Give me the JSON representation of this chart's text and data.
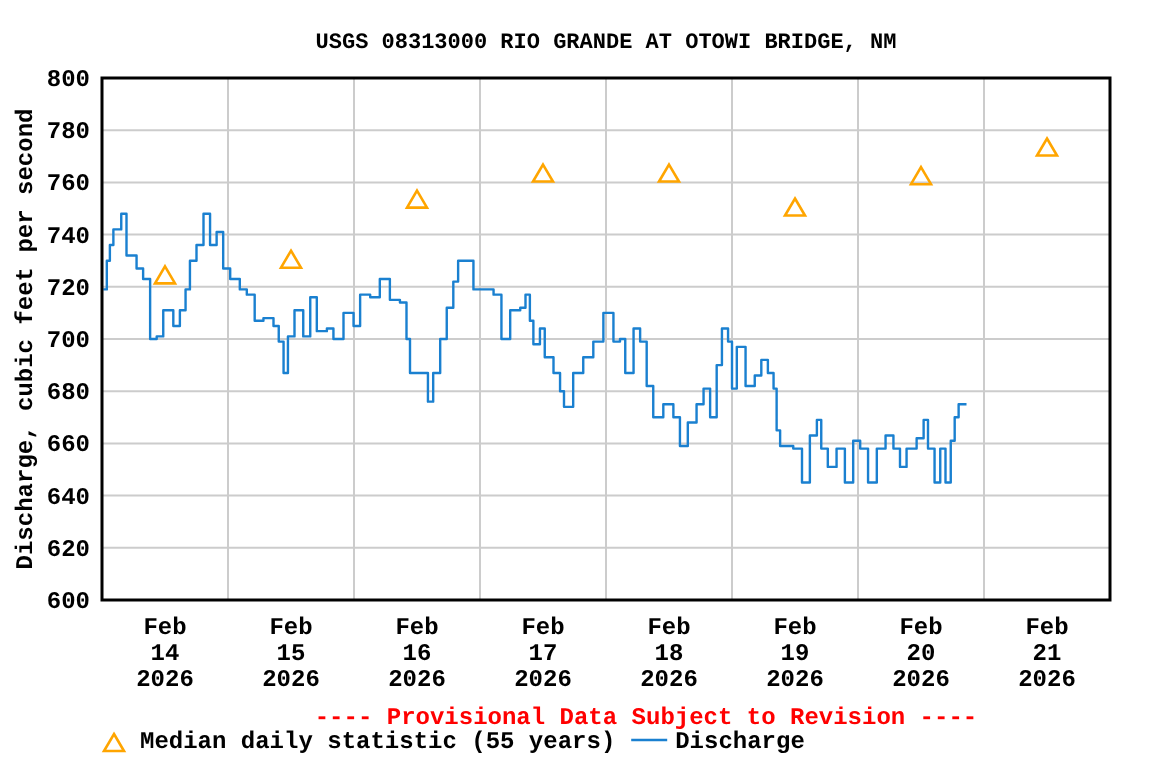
{
  "chart_data": {
    "type": "step",
    "title": "USGS 08313000 RIO GRANDE AT OTOWI BRIDGE, NM",
    "ylabel": "Discharge, cubic feet per second",
    "annotations": [
      "---- Provisional Data Subject to Revision ----"
    ],
    "xlim": [
      "2026-02-14T00:00",
      "2026-02-22T00:00"
    ],
    "xticks": [
      {
        "value": "2026-02-14T12:00",
        "label": "Feb\n14\n2026"
      },
      {
        "value": "2026-02-15T12:00",
        "label": "Feb\n15\n2026"
      },
      {
        "value": "2026-02-16T12:00",
        "label": "Feb\n16\n2026"
      },
      {
        "value": "2026-02-17T12:00",
        "label": "Feb\n17\n2026"
      },
      {
        "value": "2026-02-18T12:00",
        "label": "Feb\n18\n2026"
      },
      {
        "value": "2026-02-19T12:00",
        "label": "Feb\n19\n2026"
      },
      {
        "value": "2026-02-20T12:00",
        "label": "Feb\n20\n2026"
      },
      {
        "value": "2026-02-21T12:00",
        "label": "Feb\n21\n2026"
      },
      {
        "value": "2026-02-15T00:00",
        "label": null
      },
      {
        "value": "2026-02-16T00:00",
        "label": null
      },
      {
        "value": "2026-02-17T00:00",
        "label": null
      },
      {
        "value": "2026-02-18T00:00",
        "label": null
      },
      {
        "value": "2026-02-19T00:00",
        "label": null
      },
      {
        "value": "2026-02-20T00:00",
        "label": null
      },
      {
        "value": "2026-02-21T00:00",
        "label": null
      }
    ],
    "ylim": [
      600,
      800
    ],
    "yticks": [
      600,
      620,
      640,
      660,
      680,
      700,
      720,
      740,
      760,
      780,
      800
    ],
    "grid": true,
    "legend": "bottom",
    "series": [
      {
        "name": "Median daily statistic (55 years)",
        "type": "scatter",
        "marker": "triangle",
        "color": "#ffa500",
        "x": [
          "2026-02-14T12:00",
          "2026-02-15T12:00",
          "2026-02-16T12:00",
          "2026-02-17T12:00",
          "2026-02-18T12:00",
          "2026-02-19T12:00",
          "2026-02-20T12:00",
          "2026-02-21T12:00"
        ],
        "values": [
          724,
          730,
          753,
          763,
          763,
          750,
          762,
          773
        ]
      },
      {
        "name": "Discharge",
        "color": "#1a80d0",
        "x": [
          "2026-02-14T00:15",
          "2026-02-14T00:55",
          "2026-02-14T01:30",
          "2026-02-14T02:10",
          "2026-02-14T03:25",
          "2026-02-14T03:40",
          "2026-02-14T04:40",
          "2026-02-14T06:35",
          "2026-02-14T07:50",
          "2026-02-14T09:10",
          "2026-02-14T10:25",
          "2026-02-14T11:40",
          "2026-02-14T13:35",
          "2026-02-14T14:50",
          "2026-02-14T15:55",
          "2026-02-14T16:45",
          "2026-02-14T18:00",
          "2026-02-14T19:20",
          "2026-02-14T20:35",
          "2026-02-14T21:50",
          "2026-02-14T23:05",
          "2026-02-15T00:25",
          "2026-02-15T02:15",
          "2026-02-15T03:35",
          "2026-02-15T05:05",
          "2026-02-15T06:45",
          "2026-02-15T08:40",
          "2026-02-15T09:40",
          "2026-02-15T10:35",
          "2026-02-15T11:25",
          "2026-02-15T12:40",
          "2026-02-15T14:20",
          "2026-02-15T15:40",
          "2026-02-15T16:55",
          "2026-02-15T18:50",
          "2026-02-15T20:05",
          "2026-02-15T22:00",
          "2026-02-15T23:55",
          "2026-02-16T01:10",
          "2026-02-16T03:05",
          "2026-02-16T04:55",
          "2026-02-16T06:50",
          "2026-02-16T08:45",
          "2026-02-16T10:00",
          "2026-02-16T10:40",
          "2026-02-16T12:35",
          "2026-02-16T14:05",
          "2026-02-16T15:05",
          "2026-02-16T16:25",
          "2026-02-16T17:40",
          "2026-02-16T18:55",
          "2026-02-16T19:50",
          "2026-02-16T21:30",
          "2026-02-16T22:45",
          "2026-02-17T01:15",
          "2026-02-17T02:35",
          "2026-02-17T04:05",
          "2026-02-17T05:45",
          "2026-02-17T07:40",
          "2026-02-17T08:40",
          "2026-02-17T09:30",
          "2026-02-17T10:10",
          "2026-02-17T11:25",
          "2026-02-17T12:20",
          "2026-02-17T14:00",
          "2026-02-17T15:15",
          "2026-02-17T16:00",
          "2026-02-17T17:45",
          "2026-02-17T19:40",
          "2026-02-17T21:35",
          "2026-02-17T23:30",
          "2026-02-18T01:25",
          "2026-02-18T02:40",
          "2026-02-18T03:40",
          "2026-02-18T05:15",
          "2026-02-18T06:30",
          "2026-02-18T07:45",
          "2026-02-18T09:00",
          "2026-02-18T10:55",
          "2026-02-18T12:50",
          "2026-02-18T14:05",
          "2026-02-18T15:35",
          "2026-02-18T17:15",
          "2026-02-18T18:35",
          "2026-02-18T19:50",
          "2026-02-18T21:05",
          "2026-02-18T22:05",
          "2026-02-18T23:15",
          "2026-02-19T00:00",
          "2026-02-19T00:55",
          "2026-02-19T02:35",
          "2026-02-19T04:20",
          "2026-02-19T05:35",
          "2026-02-19T06:50",
          "2026-02-19T07:55",
          "2026-02-19T08:30",
          "2026-02-19T09:10",
          "2026-02-19T11:40",
          "2026-02-19T13:20",
          "2026-02-19T14:50",
          "2026-02-19T16:10",
          "2026-02-19T17:00",
          "2026-02-19T18:15",
          "2026-02-19T19:55",
          "2026-02-19T21:30",
          "2026-02-19T23:05",
          "2026-02-20T00:25",
          "2026-02-20T01:55",
          "2026-02-20T03:35",
          "2026-02-20T05:15",
          "2026-02-20T06:45",
          "2026-02-20T08:00",
          "2026-02-20T09:15",
          "2026-02-20T11:10",
          "2026-02-20T12:30",
          "2026-02-20T13:20",
          "2026-02-20T14:35",
          "2026-02-20T15:40",
          "2026-02-20T16:40",
          "2026-02-20T17:40",
          "2026-02-20T18:25",
          "2026-02-20T19:10",
          "2026-02-20T20:40"
        ],
        "values": [
          719,
          730,
          736,
          742,
          742,
          748,
          732,
          727,
          723,
          700,
          701,
          711,
          705,
          711,
          719,
          730,
          736,
          748,
          736,
          741,
          727,
          723,
          719,
          717,
          707,
          708,
          705,
          699,
          687,
          701,
          711,
          701,
          716,
          703,
          704,
          700,
          710,
          705,
          717,
          716,
          723,
          715,
          714,
          700,
          687,
          687,
          676,
          687,
          700,
          712,
          722,
          730,
          730,
          719,
          719,
          717,
          700,
          711,
          712,
          717,
          707,
          698,
          704,
          693,
          687,
          680,
          674,
          687,
          693,
          699,
          710,
          699,
          700,
          687,
          704,
          699,
          682,
          670,
          675,
          670,
          659,
          668,
          675,
          681,
          670,
          690,
          704,
          699,
          681,
          697,
          682,
          686,
          692,
          687,
          681,
          665,
          659,
          658,
          645,
          663,
          669,
          658,
          651,
          658,
          645,
          661,
          658,
          645,
          658,
          663,
          658,
          651,
          658,
          662,
          669,
          658,
          645,
          658,
          645,
          661,
          670,
          675,
          675
        ]
      }
    ]
  }
}
